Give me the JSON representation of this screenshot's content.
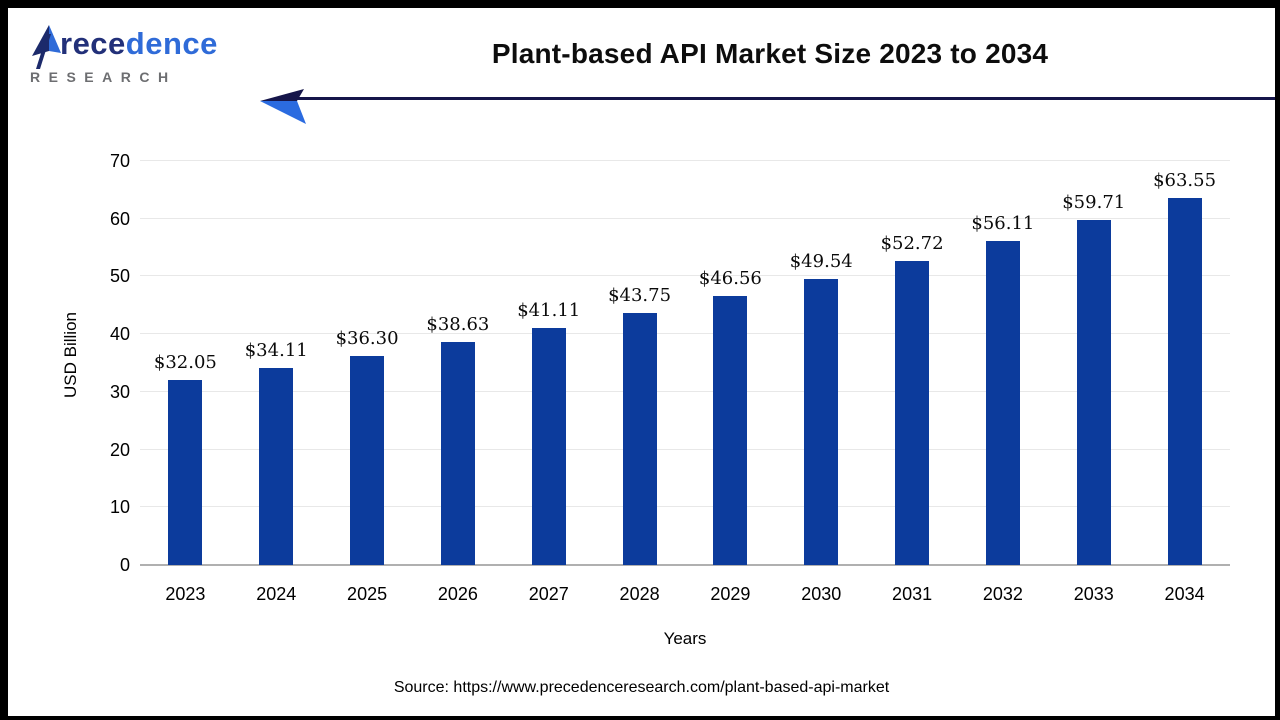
{
  "header": {
    "logo": {
      "word_part1": "rece",
      "word_part2": "dence",
      "subtitle": "RESEARCH"
    },
    "title": "Plant-based API Market Size 2023 to 2034"
  },
  "chart_data": {
    "type": "bar",
    "title": "Plant-based API Market Size 2023 to 2034",
    "categories": [
      "2023",
      "2024",
      "2025",
      "2026",
      "2027",
      "2028",
      "2029",
      "2030",
      "2031",
      "2032",
      "2033",
      "2034"
    ],
    "values": [
      32.05,
      34.11,
      36.3,
      38.63,
      41.11,
      43.75,
      46.56,
      49.54,
      52.72,
      56.11,
      59.71,
      63.55
    ],
    "labels": [
      "$32.05",
      "$34.11",
      "$36.30",
      "$38.63",
      "$41.11",
      "$43.75",
      "$46.56",
      "$49.54",
      "$52.72",
      "$56.11",
      "$59.71",
      "$63.55"
    ],
    "xlabel": "Years",
    "ylabel": "USD Billion",
    "ylim": [
      0,
      70
    ],
    "yticks": [
      0,
      10,
      20,
      30,
      40,
      50,
      60,
      70
    ],
    "grid": true,
    "legend": "none",
    "bar_color": "#0c3b9c"
  },
  "footer": {
    "source": "Source: https://www.precedenceresearch.com/plant-based-api-market"
  },
  "colors": {
    "bar": "#0c3b9c",
    "arrow_line": "#16164a",
    "arrow_head_dark": "#16164a",
    "arrow_head_light": "#2b6be0",
    "logo_navy": "#223079",
    "logo_blue": "#2f6bd8",
    "logo_gray": "#6d6e71",
    "gridline": "#e8e8e8",
    "axis": "#b0b0b0"
  }
}
